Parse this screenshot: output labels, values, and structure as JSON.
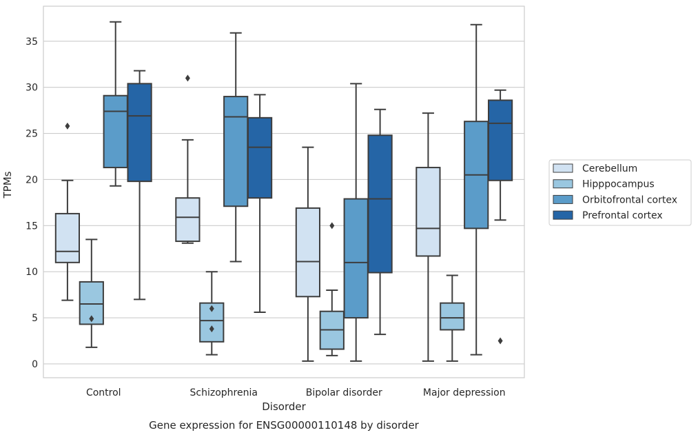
{
  "chart_data": {
    "type": "boxplot",
    "caption": "Gene expression for ENSG00000110148 by disorder",
    "xlabel": "Disorder",
    "ylabel": "TPMs",
    "ylim": [
      -1.5,
      38.8
    ],
    "yticks": [
      0,
      5,
      10,
      15,
      20,
      25,
      30,
      35
    ],
    "grid": "horizontal",
    "legend_position": "right",
    "categories": [
      "Control",
      "Schizophrenia",
      "Bipolar disorder",
      "Major depression"
    ],
    "series": [
      {
        "name": "Cerebellum",
        "color": "#d1e2f2",
        "boxes": [
          {
            "whislo": 6.9,
            "q1": 11.0,
            "med": 12.2,
            "q3": 16.3,
            "whishi": 19.9,
            "fliers": [
              25.8
            ]
          },
          {
            "whislo": 13.1,
            "q1": 13.3,
            "med": 15.9,
            "q3": 18.0,
            "whishi": 24.3,
            "fliers": [
              31.0
            ]
          },
          {
            "whislo": 0.3,
            "q1": 7.3,
            "med": 11.1,
            "q3": 16.9,
            "whishi": 23.5,
            "fliers": []
          },
          {
            "whislo": 0.3,
            "q1": 11.7,
            "med": 14.7,
            "q3": 21.3,
            "whishi": 27.2,
            "fliers": []
          }
        ]
      },
      {
        "name": "Hipppocampus",
        "color": "#9ac7e0",
        "boxes": [
          {
            "whislo": 1.8,
            "q1": 4.3,
            "med": 6.5,
            "q3": 8.9,
            "whishi": 13.5,
            "fliers": [
              4.9
            ]
          },
          {
            "whislo": 1.0,
            "q1": 2.4,
            "med": 4.7,
            "q3": 6.6,
            "whishi": 10.0,
            "fliers": [
              6.0,
              3.8
            ]
          },
          {
            "whislo": 0.9,
            "q1": 1.6,
            "med": 3.7,
            "q3": 5.7,
            "whishi": 8.0,
            "fliers": [
              15.0
            ]
          },
          {
            "whislo": 0.3,
            "q1": 3.7,
            "med": 5.0,
            "q3": 6.6,
            "whishi": 9.6,
            "fliers": []
          }
        ]
      },
      {
        "name": "Orbitofrontal cortex",
        "color": "#5b9cc9",
        "boxes": [
          {
            "whislo": 19.3,
            "q1": 21.3,
            "med": 27.4,
            "q3": 29.1,
            "whishi": 37.1,
            "fliers": []
          },
          {
            "whislo": 11.1,
            "q1": 17.1,
            "med": 26.8,
            "q3": 29.0,
            "whishi": 35.9,
            "fliers": []
          },
          {
            "whislo": 0.3,
            "q1": 5.0,
            "med": 11.0,
            "q3": 17.9,
            "whishi": 30.4,
            "fliers": []
          },
          {
            "whislo": 1.0,
            "q1": 14.7,
            "med": 20.5,
            "q3": 26.3,
            "whishi": 36.8,
            "fliers": []
          }
        ]
      },
      {
        "name": "Prefrontal cortex",
        "color": "#2565a6",
        "boxes": [
          {
            "whislo": 7.0,
            "q1": 19.8,
            "med": 26.9,
            "q3": 30.4,
            "whishi": 31.8,
            "fliers": []
          },
          {
            "whislo": 5.6,
            "q1": 18.0,
            "med": 23.5,
            "q3": 26.7,
            "whishi": 29.2,
            "fliers": []
          },
          {
            "whislo": 3.2,
            "q1": 9.9,
            "med": 17.9,
            "q3": 24.8,
            "whishi": 27.6,
            "fliers": []
          },
          {
            "whislo": 15.6,
            "q1": 19.9,
            "med": 26.1,
            "q3": 28.6,
            "whishi": 29.7,
            "fliers": [
              2.5
            ]
          }
        ]
      }
    ]
  }
}
